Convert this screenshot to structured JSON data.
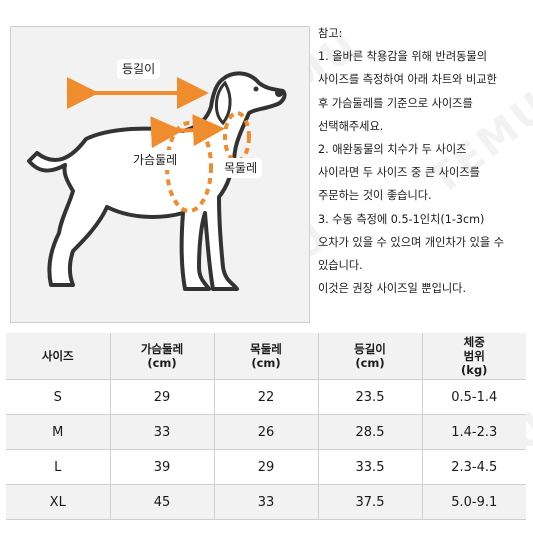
{
  "diagram": {
    "back_length_label": "등길이",
    "chest_label": "가슴둘레",
    "neck_label": "목둘레",
    "arrow_color": "#f08c2e",
    "dog_outline_color": "#333333"
  },
  "notes": {
    "lines": [
      "참고:",
      "1. 올바른 착용감을 위해 반려동물의",
      "사이즈를 측정하여 아래 차트와 비교한",
      "후 가슴둘레를 기준으로 사이즈를",
      "선택해주세요.",
      "2. 애완동물의 치수가 두 사이즈",
      "사이라면 두 사이즈 중 큰 사이즈를",
      "주문하는 것이 좋습니다.",
      "3. 수동 측정에 0.5-1인치(1-3cm)",
      "오차가 있을 수 있으며  개인차가 있을 수",
      "있습니다.",
      "이것은  권장 사이즈일 뿐입니다."
    ]
  },
  "table": {
    "headers": [
      [
        "사이즈"
      ],
      [
        "가슴둘레",
        "(cm)"
      ],
      [
        "목둘레",
        "(cm)"
      ],
      [
        "등길이",
        "(cm)"
      ],
      [
        "체중",
        "범위",
        "(kg)"
      ]
    ],
    "rows": [
      [
        "S",
        "29",
        "22",
        "23.5",
        "0.5-1.4"
      ],
      [
        "M",
        "33",
        "26",
        "28.5",
        "1.4-2.3"
      ],
      [
        "L",
        "39",
        "29",
        "33.5",
        "2.3-4.5"
      ],
      [
        "XL",
        "45",
        "33",
        "37.5",
        "5.0-9.1"
      ]
    ]
  },
  "watermark": "TEMU"
}
